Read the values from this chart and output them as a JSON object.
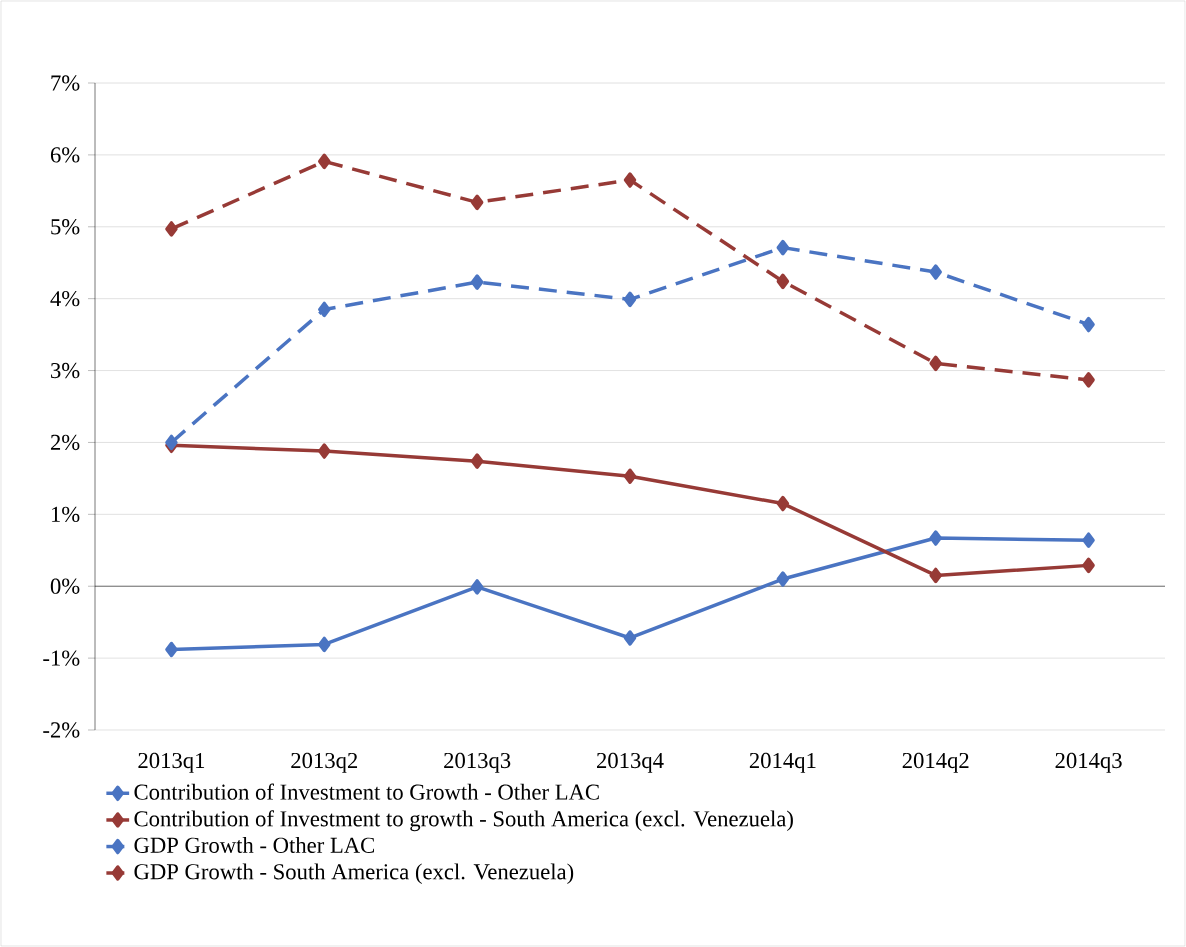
{
  "chart_data": {
    "type": "line",
    "categories": [
      "2013q1",
      "2013q2",
      "2013q3",
      "2013q4",
      "2014q1",
      "2014q2",
      "2014q3"
    ],
    "series": [
      {
        "name": "Contribution of Investment to Growth - Other LAC",
        "color": "#4a74c2",
        "line_style": "solid",
        "values": [
          -0.88,
          -0.81,
          -0.01,
          -0.72,
          0.1,
          0.67,
          0.64
        ]
      },
      {
        "name": "Contribution of Investment to growth - South America (excl. Venezuela)",
        "color": "#973a36",
        "line_style": "solid",
        "values": [
          1.96,
          1.88,
          1.74,
          1.53,
          1.15,
          0.15,
          0.29
        ]
      },
      {
        "name": "GDP Growth - Other LAC",
        "color": "#4a74c2",
        "line_style": "dashed",
        "values": [
          2.0,
          3.85,
          4.23,
          3.99,
          4.71,
          4.37,
          3.64
        ]
      },
      {
        "name": "GDP Growth - South America (excl. Venezuela)",
        "color": "#973a36",
        "line_style": "dashed",
        "values": [
          4.97,
          5.91,
          5.34,
          5.65,
          4.24,
          3.1,
          2.87
        ]
      }
    ],
    "ylim": [
      -2,
      7
    ],
    "yticks": [
      {
        "value": -2,
        "label": "-2%"
      },
      {
        "value": -1,
        "label": "-1%"
      },
      {
        "value": 0,
        "label": "0%"
      },
      {
        "value": 1,
        "label": "1%"
      },
      {
        "value": 2,
        "label": "2%"
      },
      {
        "value": 3,
        "label": "3%"
      },
      {
        "value": 4,
        "label": "4%"
      },
      {
        "value": 5,
        "label": "5%"
      },
      {
        "value": 6,
        "label": "6%"
      },
      {
        "value": 7,
        "label": "7%"
      }
    ],
    "grid": "y",
    "legend": "bottom",
    "marker": "diamond"
  }
}
